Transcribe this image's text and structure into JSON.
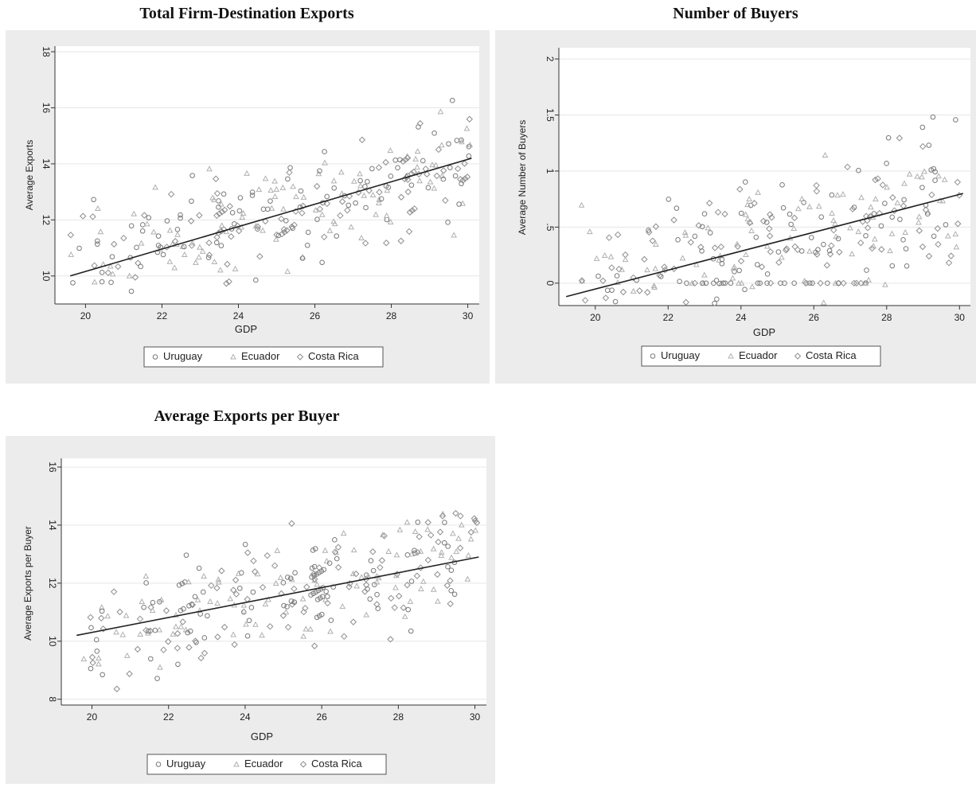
{
  "legend": [
    "Uruguay",
    "Ecuador",
    "Costa Rica"
  ],
  "chart_data": [
    {
      "type": "scatter",
      "title": "Total Firm-Destination Exports",
      "xlabel": "GDP",
      "ylabel": "Average Exports",
      "xlim": [
        19.2,
        30.3
      ],
      "ylim": [
        9.0,
        18.2
      ],
      "xticks": [
        20,
        22,
        24,
        26,
        28,
        30
      ],
      "yticks": [
        10,
        12,
        14,
        16,
        18
      ],
      "ytick_rotated": true,
      "fit_line": [
        [
          19.6,
          10.0
        ],
        [
          30.1,
          14.2
        ]
      ],
      "legend_position": "bottom"
    },
    {
      "type": "scatter",
      "title": "Number of Buyers",
      "xlabel": "GDP",
      "ylabel": "Average Number of Buyers",
      "xlim": [
        19.0,
        30.3
      ],
      "ylim": [
        -0.2,
        2.1
      ],
      "xticks": [
        20,
        22,
        24,
        26,
        28,
        30
      ],
      "yticks": [
        0,
        0.5,
        1,
        1.5,
        2
      ],
      "ytick_labels": [
        "0",
        ".5",
        "1",
        "1.5",
        "2"
      ],
      "ytick_rotated": true,
      "fit_line": [
        [
          19.2,
          -0.12
        ],
        [
          30.1,
          0.8
        ]
      ],
      "legend_position": "bottom"
    },
    {
      "type": "scatter",
      "title": "Average Exports per Buyer",
      "xlabel": "GDP",
      "ylabel": "Average Exports per Buyer",
      "xlim": [
        19.2,
        30.3
      ],
      "ylim": [
        7.8,
        16.3
      ],
      "xticks": [
        20,
        22,
        24,
        26,
        28,
        30
      ],
      "yticks": [
        8,
        10,
        12,
        14,
        16
      ],
      "ytick_rotated": true,
      "fit_line": [
        [
          19.6,
          10.2
        ],
        [
          30.1,
          12.9
        ]
      ],
      "legend_position": "bottom"
    }
  ]
}
